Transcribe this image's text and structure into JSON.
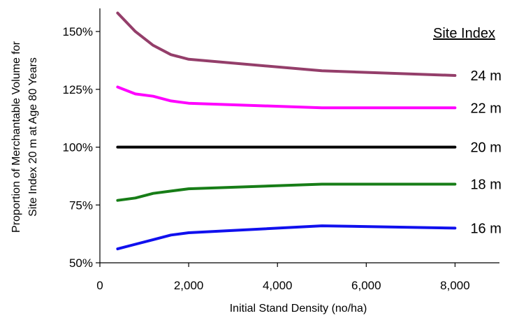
{
  "chart_data": {
    "type": "line",
    "xlabel": "Initial Stand Density (no/ha)",
    "ylabel_lines": [
      "Proportion of Merchantable Volume for",
      "Site Index 20 m at Age 80 Years"
    ],
    "xlim": [
      0,
      9000
    ],
    "ylim": [
      50,
      160
    ],
    "x_ticks": [
      0,
      2000,
      4000,
      6000,
      8000
    ],
    "x_tick_labels": [
      "0",
      "2,000",
      "4,000",
      "6,000",
      "8,000"
    ],
    "y_ticks": [
      50,
      75,
      100,
      125,
      150
    ],
    "y_tick_labels": [
      "50%",
      "75%",
      "100%",
      "125%",
      "150%"
    ],
    "grid": false,
    "legend_title": "Site Index",
    "series": [
      {
        "name": "24 m",
        "color": "#943e6a",
        "x": [
          400,
          800,
          1200,
          1600,
          2000,
          5000,
          8000
        ],
        "values": [
          158,
          150,
          144,
          140,
          138,
          133,
          131
        ]
      },
      {
        "name": "22 m",
        "color": "#ff00ff",
        "x": [
          400,
          800,
          1200,
          1600,
          2000,
          5000,
          8000
        ],
        "values": [
          126,
          123,
          122,
          120,
          119,
          117,
          117
        ]
      },
      {
        "name": "20 m",
        "color": "#000000",
        "x": [
          400,
          800,
          1200,
          1600,
          2000,
          5000,
          8000
        ],
        "values": [
          100,
          100,
          100,
          100,
          100,
          100,
          100
        ]
      },
      {
        "name": "18 m",
        "color": "#177d17",
        "x": [
          400,
          800,
          1200,
          1600,
          2000,
          5000,
          8000
        ],
        "values": [
          77,
          78,
          80,
          81,
          82,
          84,
          84
        ]
      },
      {
        "name": "16 m",
        "color": "#1010ee",
        "x": [
          400,
          800,
          1200,
          1600,
          2000,
          5000,
          8000
        ],
        "values": [
          56,
          58,
          60,
          62,
          63,
          66,
          65
        ]
      }
    ]
  }
}
